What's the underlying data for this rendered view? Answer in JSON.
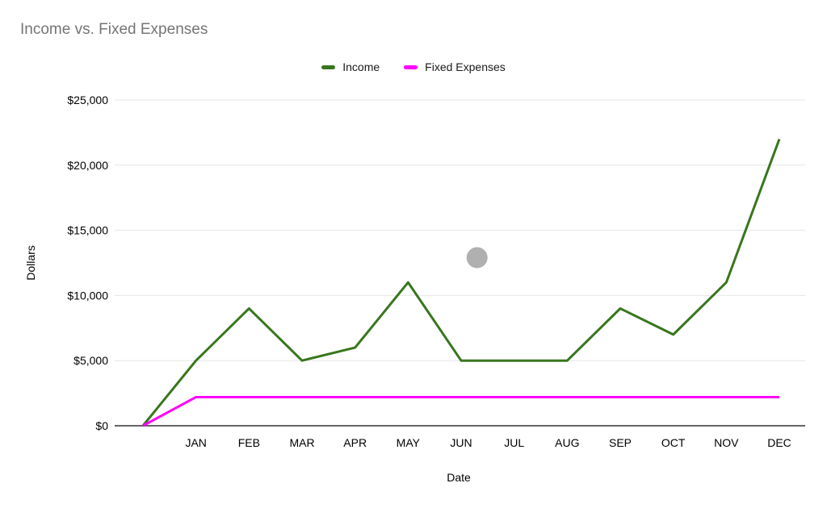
{
  "chart_data": {
    "type": "line",
    "title": "Income vs. Fixed Expenses",
    "xlabel": "Date",
    "ylabel": "Dollars",
    "categories": [
      "",
      "JAN",
      "FEB",
      "MAR",
      "APR",
      "MAY",
      "JUN",
      "JUL",
      "AUG",
      "SEP",
      "OCT",
      "NOV",
      "DEC"
    ],
    "series": [
      {
        "name": "Income",
        "color": "#38761d",
        "values": [
          0,
          5000,
          9000,
          5000,
          6000,
          11000,
          5000,
          5000,
          5000,
          9000,
          7000,
          11000,
          22000
        ]
      },
      {
        "name": "Fixed Expenses",
        "color": "#ff00ff",
        "values": [
          0,
          2200,
          2200,
          2200,
          2200,
          2200,
          2200,
          2200,
          2200,
          2200,
          2200,
          2200,
          2200
        ]
      }
    ],
    "y_ticks": [
      {
        "value": 0,
        "label": "$0"
      },
      {
        "value": 5000,
        "label": "$5,000"
      },
      {
        "value": 10000,
        "label": "$10,000"
      },
      {
        "value": 15000,
        "label": "$15,000"
      },
      {
        "value": 20000,
        "label": "$20,000"
      },
      {
        "value": 25000,
        "label": "$25,000"
      }
    ],
    "ylim": [
      0,
      25000
    ],
    "grid": true,
    "legend_position": "top-center",
    "annotations": [
      {
        "shape": "circle",
        "month_offset": 6.3,
        "value": 12900,
        "color": "#b0b0b0",
        "radius": 13
      }
    ],
    "colors": {
      "title_text": "#757575",
      "axis_line": "#666666",
      "gridline": "#e6e6e6",
      "tick_text": "#000000",
      "legend_text": "#1a1a1a"
    }
  }
}
